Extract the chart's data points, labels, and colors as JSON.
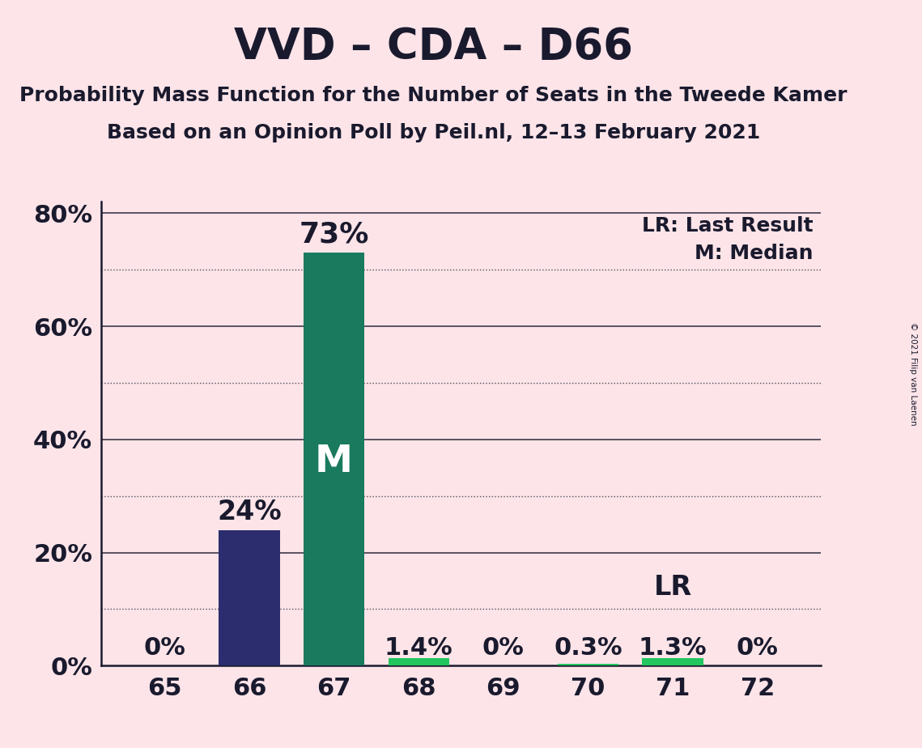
{
  "title": "VVD – CDA – D66",
  "subtitle1": "Probability Mass Function for the Number of Seats in the Tweede Kamer",
  "subtitle2": "Based on an Opinion Poll by Peil.nl, 12–13 February 2021",
  "copyright": "© 2021 Filip van Laenen",
  "categories": [
    65,
    66,
    67,
    68,
    69,
    70,
    71,
    72
  ],
  "values": [
    0.0,
    24.0,
    73.0,
    1.4,
    0.0,
    0.3,
    1.3,
    0.0
  ],
  "bar_colors": [
    "#fce4e8",
    "#2b2d6e",
    "#1a7a5e",
    "#22c55e",
    "#fce4e8",
    "#22c55e",
    "#22c55e",
    "#fce4e8"
  ],
  "bar_labels": [
    "0%",
    "24%",
    "73%",
    "1.4%",
    "0%",
    "0.3%",
    "1.3%",
    "0%"
  ],
  "median_bar_index": 2,
  "lr_bar_index": 6,
  "background_color": "#fce4e8",
  "text_color": "#1a1a2e",
  "grid_color": "#1a1a2e",
  "solid_yticks": [
    20,
    40,
    60,
    80
  ],
  "dotted_yticks": [
    10,
    30,
    50,
    70
  ],
  "ytick_labels_positions": [
    0,
    20,
    40,
    60,
    80
  ],
  "ytick_labels": [
    "0%",
    "20%",
    "40%",
    "60%",
    "80%"
  ],
  "ylim_max": 82,
  "title_fontsize": 38,
  "subtitle_fontsize": 18,
  "bar_label_fontsize": 22,
  "axis_label_fontsize": 22,
  "legend_fontsize": 18
}
